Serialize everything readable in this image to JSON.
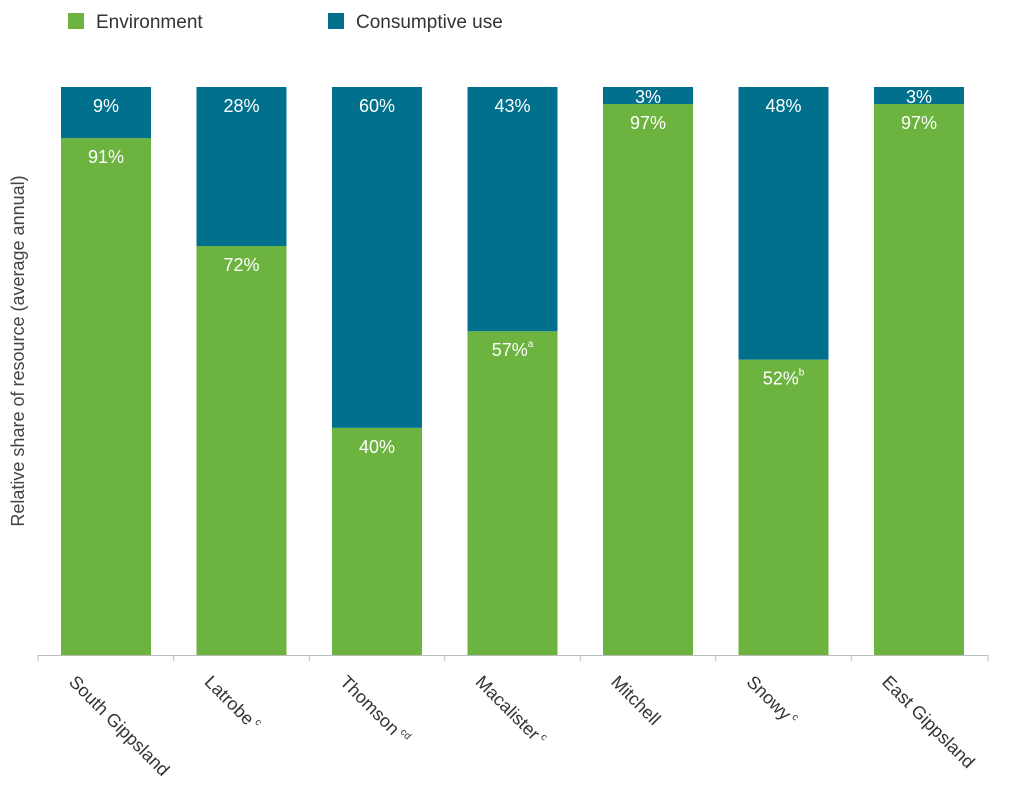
{
  "chart_data": {
    "type": "bar",
    "stacked": true,
    "normalized": true,
    "title": "",
    "xlabel": "",
    "ylabel": "Relative share of resource (average annual)",
    "ylim": [
      0,
      100
    ],
    "grid": false,
    "legend_position": "top-left",
    "categories": [
      {
        "name": "South Gippsland",
        "note": ""
      },
      {
        "name": "Latrobe",
        "note": "c"
      },
      {
        "name": "Thomson",
        "note": "cd"
      },
      {
        "name": "Macalister",
        "note": "c"
      },
      {
        "name": "Mitchell",
        "note": ""
      },
      {
        "name": "Snowy",
        "note": "c"
      },
      {
        "name": "East Gippsland",
        "note": ""
      }
    ],
    "series": [
      {
        "name": "Environment",
        "color": "#6db33f",
        "values": [
          91,
          72,
          40,
          57,
          97,
          52,
          97
        ],
        "labels": [
          "91%",
          "72%",
          "40%",
          "57%",
          "97%",
          "52%",
          "97%"
        ],
        "label_notes": [
          "",
          "",
          "",
          "a",
          "",
          "b",
          ""
        ]
      },
      {
        "name": "Consumptive use",
        "color": "#00708c",
        "values": [
          9,
          28,
          60,
          43,
          3,
          48,
          3
        ],
        "labels": [
          "9%",
          "28%",
          "60%",
          "43%",
          "3%",
          "48%",
          "3%"
        ],
        "label_notes": [
          "",
          "",
          "",
          "",
          "",
          "",
          ""
        ]
      }
    ]
  }
}
